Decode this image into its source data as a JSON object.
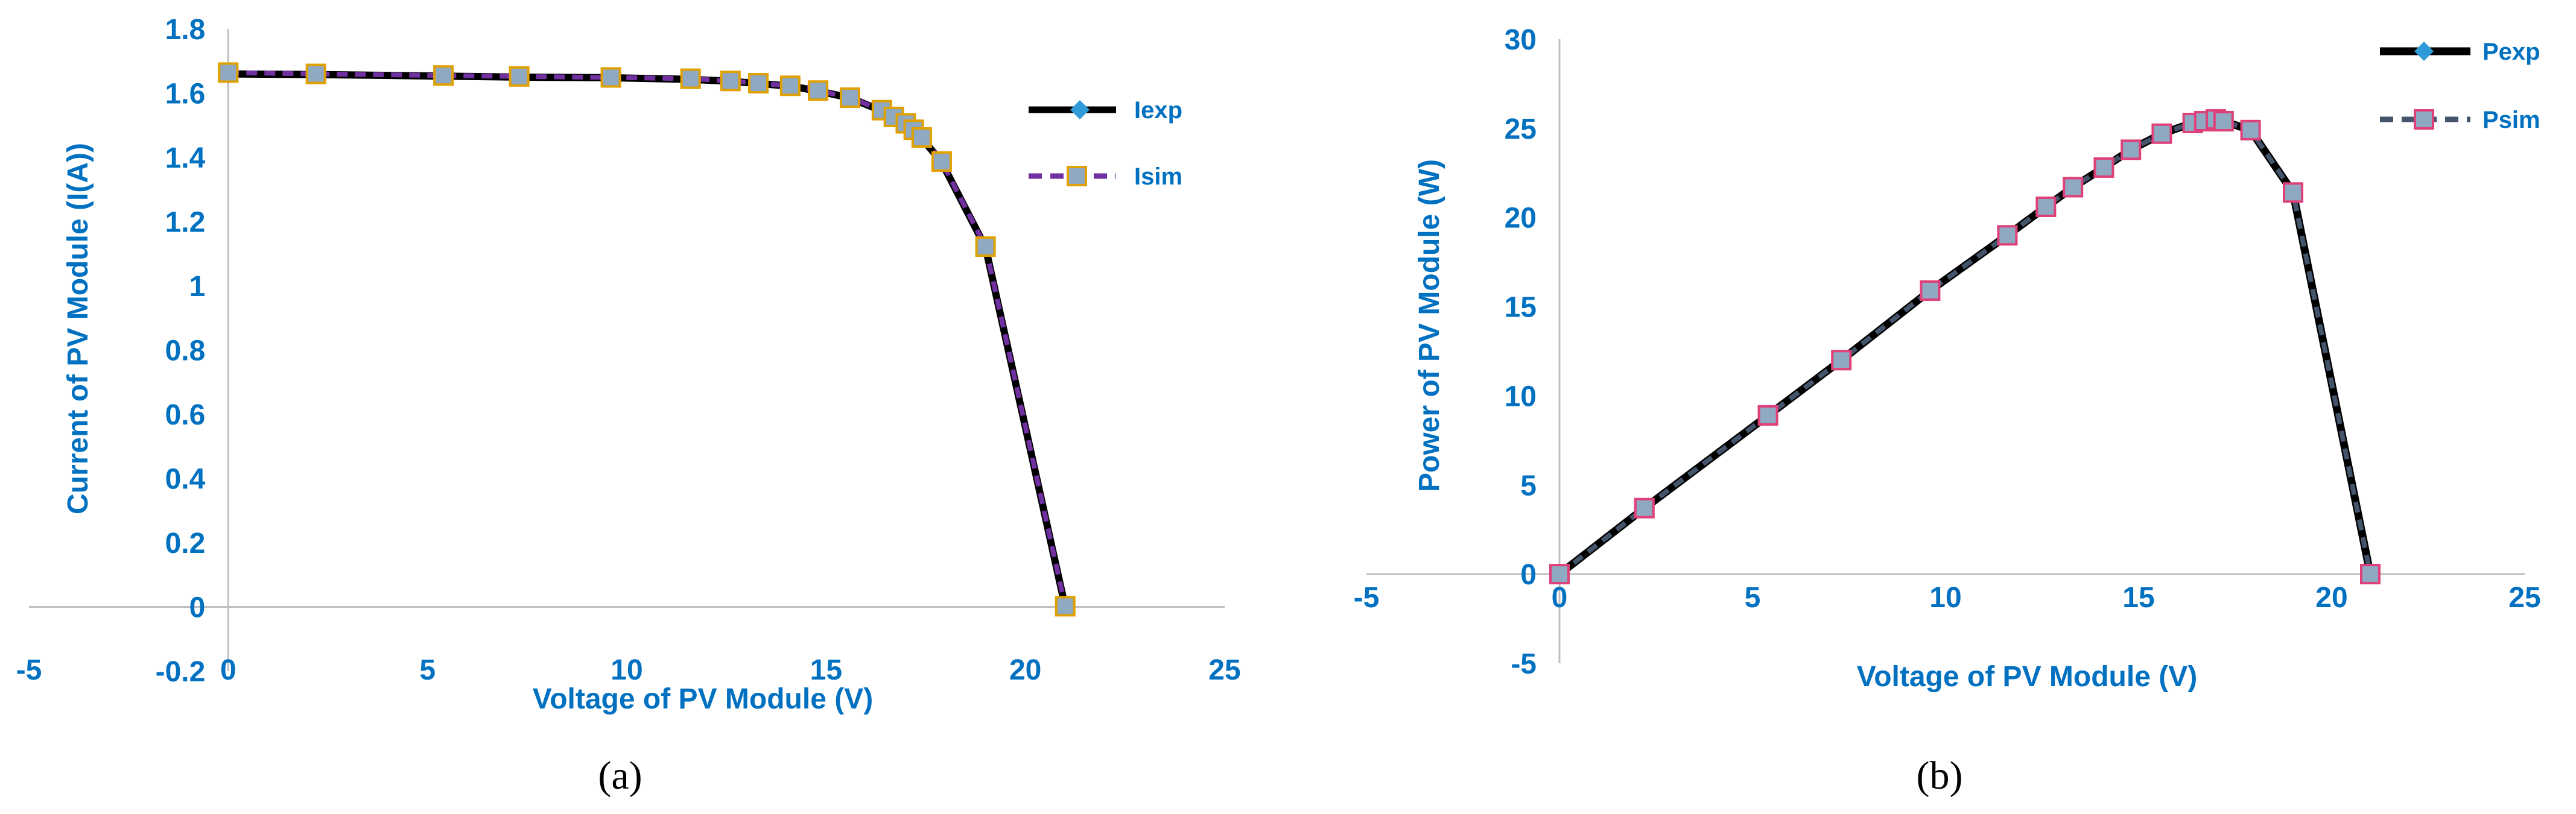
{
  "colors": {
    "axis_text": "#0070C0",
    "axis_line": "#BFBFBF",
    "exp_line": "#000000",
    "exp_marker": "#2E9BD8",
    "sim_a_line": "#7030A0",
    "sim_a_marker_fill": "#8EA9C1",
    "sim_a_marker_edge": "#E0A000",
    "sim_b_line": "#44546A",
    "sim_b_marker_fill": "#8EA9C1",
    "sim_b_marker_edge": "#E0407A"
  },
  "chart_data": [
    {
      "type": "scatter",
      "caption": "(a)",
      "xlabel": "Voltage of PV Module (V)",
      "ylabel": "Current of PV Module (I(A))",
      "xlim": [
        -5,
        25
      ],
      "ylim": [
        -0.2,
        1.8
      ],
      "xticks": [
        "-5",
        "0",
        "5",
        "10",
        "15",
        "20",
        "25"
      ],
      "yticks": [
        "-0.2",
        "0",
        "0.2",
        "0.4",
        "0.6",
        "0.8",
        "1",
        "1.2",
        "1.4",
        "1.6",
        "1.8"
      ],
      "grid": false,
      "legend_position": "right",
      "series": [
        {
          "name": "Iexp",
          "style": "solid",
          "x": [
            0,
            2.2,
            5.4,
            7.3,
            9.6,
            11.6,
            12.6,
            13.3,
            14.1,
            14.8,
            15.6,
            16.4,
            16.7,
            17.0,
            17.2,
            17.4,
            17.9,
            19.0,
            21.0
          ],
          "y": [
            1.66,
            1.658,
            1.653,
            1.65,
            1.648,
            1.643,
            1.637,
            1.63,
            1.622,
            1.607,
            1.585,
            1.545,
            1.525,
            1.505,
            1.485,
            1.46,
            1.385,
            1.12,
            0
          ]
        },
        {
          "name": "Isim",
          "style": "dashed",
          "x": [
            0,
            2.2,
            5.4,
            7.3,
            9.6,
            11.6,
            12.6,
            13.3,
            14.1,
            14.8,
            15.6,
            16.4,
            16.7,
            17.0,
            17.2,
            17.4,
            17.9,
            19.0,
            21.0
          ],
          "y": [
            1.664,
            1.66,
            1.655,
            1.652,
            1.649,
            1.645,
            1.638,
            1.631,
            1.623,
            1.608,
            1.586,
            1.547,
            1.526,
            1.506,
            1.486,
            1.462,
            1.387,
            1.122,
            0.002
          ]
        }
      ]
    },
    {
      "type": "scatter",
      "caption": "(b)",
      "xlabel": "Voltage of PV Module (V)",
      "ylabel": "Power of PV Module (W)",
      "xlim": [
        -5,
        25
      ],
      "ylim": [
        -5,
        30
      ],
      "xticks": [
        "-5",
        "0",
        "5",
        "10",
        "15",
        "20",
        "25"
      ],
      "yticks": [
        "-5",
        "0",
        "5",
        "10",
        "15",
        "20",
        "25",
        "30"
      ],
      "grid": false,
      "legend_position": "top-right",
      "series": [
        {
          "name": "Pexp",
          "style": "solid",
          "x": [
            0,
            2.2,
            5.4,
            7.3,
            9.6,
            11.6,
            12.6,
            13.3,
            14.1,
            14.8,
            15.6,
            16.4,
            16.7,
            17.0,
            17.2,
            17.9,
            19.0,
            21.0
          ],
          "y": [
            0,
            3.7,
            8.9,
            12.0,
            15.9,
            19.0,
            20.6,
            21.7,
            22.8,
            23.8,
            24.7,
            25.3,
            25.4,
            25.5,
            25.4,
            24.9,
            21.4,
            0
          ]
        },
        {
          "name": "Psim",
          "style": "dashed",
          "x": [
            0,
            2.2,
            5.4,
            7.3,
            9.6,
            11.6,
            12.6,
            13.3,
            14.1,
            14.8,
            15.6,
            16.4,
            16.7,
            17.0,
            17.2,
            17.9,
            19.0,
            21.0
          ],
          "y": [
            0,
            3.7,
            8.9,
            12.0,
            15.9,
            19.0,
            20.6,
            21.7,
            22.8,
            23.8,
            24.7,
            25.3,
            25.4,
            25.5,
            25.4,
            24.9,
            21.4,
            0
          ]
        }
      ]
    }
  ]
}
